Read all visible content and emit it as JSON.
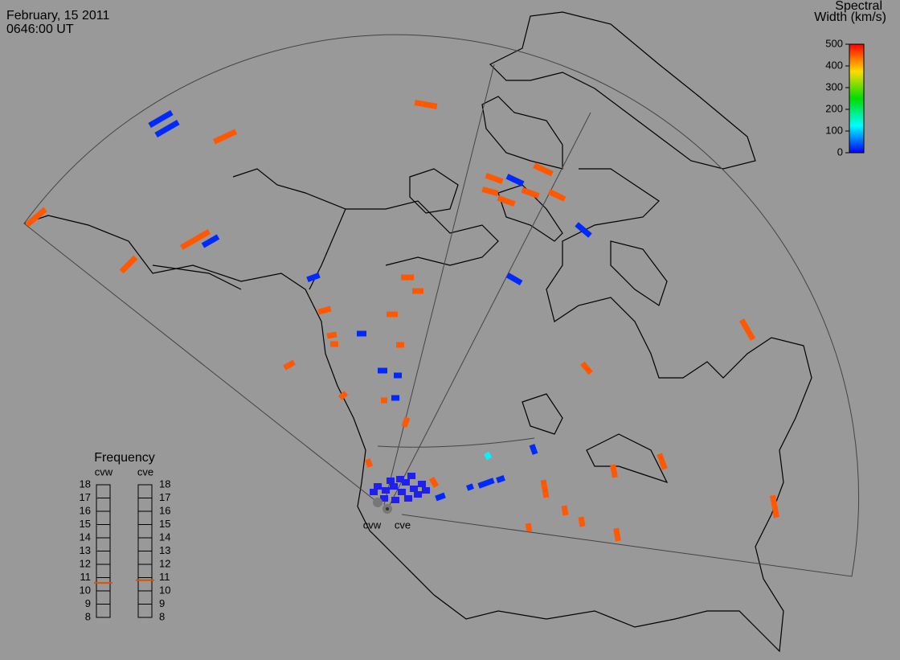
{
  "header": {
    "date": "February, 15 2011",
    "time": "0646:00 UT"
  },
  "colorbar": {
    "title": [
      "Spectral",
      "Width (km/s)"
    ],
    "range": [
      0,
      500
    ],
    "ticks": [
      0,
      100,
      200,
      300,
      400,
      500
    ]
  },
  "frequency": {
    "title": "Frequency",
    "range": [
      8,
      18
    ],
    "ticks": [
      8,
      9,
      10,
      11,
      12,
      13,
      14,
      15,
      16,
      17,
      18
    ],
    "radars": [
      {
        "name": "cvw",
        "value": 10.6
      },
      {
        "name": "cve",
        "value": 10.8
      }
    ]
  },
  "sites": [
    "cvw",
    "cve"
  ],
  "echo_widths": [
    450,
    450,
    450,
    450,
    450,
    450,
    450,
    450,
    450,
    450,
    450,
    450,
    450,
    450,
    450,
    450,
    450,
    450,
    450,
    450,
    450,
    450,
    450,
    450,
    450,
    450,
    450,
    450,
    450,
    450,
    450,
    450,
    450,
    450,
    20,
    20,
    20,
    20,
    20,
    20,
    20,
    20,
    20,
    20,
    20,
    20,
    20,
    20,
    20,
    20,
    120
  ]
}
